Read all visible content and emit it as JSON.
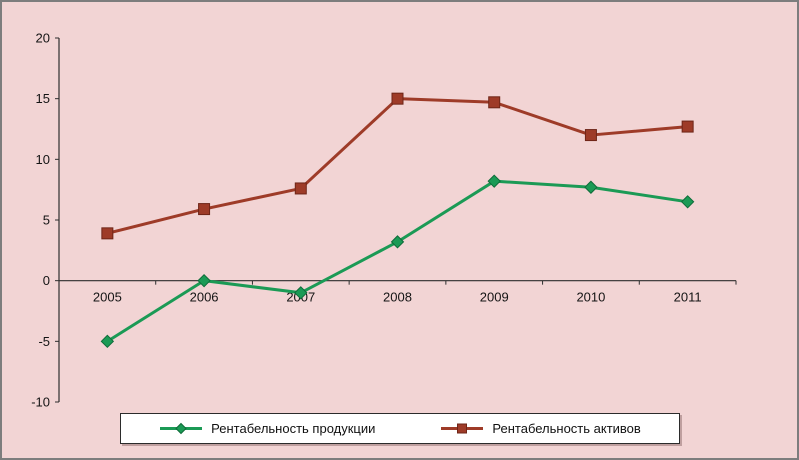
{
  "chart_data": {
    "type": "line",
    "title": "",
    "categories": [
      "2005",
      "2006",
      "2007",
      "2008",
      "2009",
      "2010",
      "2011"
    ],
    "series": [
      {
        "name": "Рентабельность продукции",
        "color": "#1b9a55",
        "edge_color": "#0f6b39",
        "marker": "diamond",
        "values": [
          -5,
          0,
          -1,
          3.2,
          8.2,
          7.7,
          6.5
        ]
      },
      {
        "name": "Рентабельность активов",
        "color": "#9e3b28",
        "edge_color": "#6e2517",
        "marker": "square",
        "values": [
          3.9,
          5.9,
          7.6,
          15,
          14.7,
          12,
          12.7
        ]
      }
    ],
    "xlabel": "",
    "ylabel": "",
    "ylim": [
      -10,
      20
    ],
    "yticks": [
      20,
      15,
      10,
      5,
      0,
      -5,
      -10
    ],
    "grid": false,
    "legend_position": "bottom",
    "colors": {
      "background": "#f2d4d4",
      "frame_border": "#7d7d7d",
      "axis": "#2e2e2e",
      "tick_text": "#141414",
      "legend_background": "#ffffff",
      "legend_border": "#2b2b2b"
    }
  }
}
